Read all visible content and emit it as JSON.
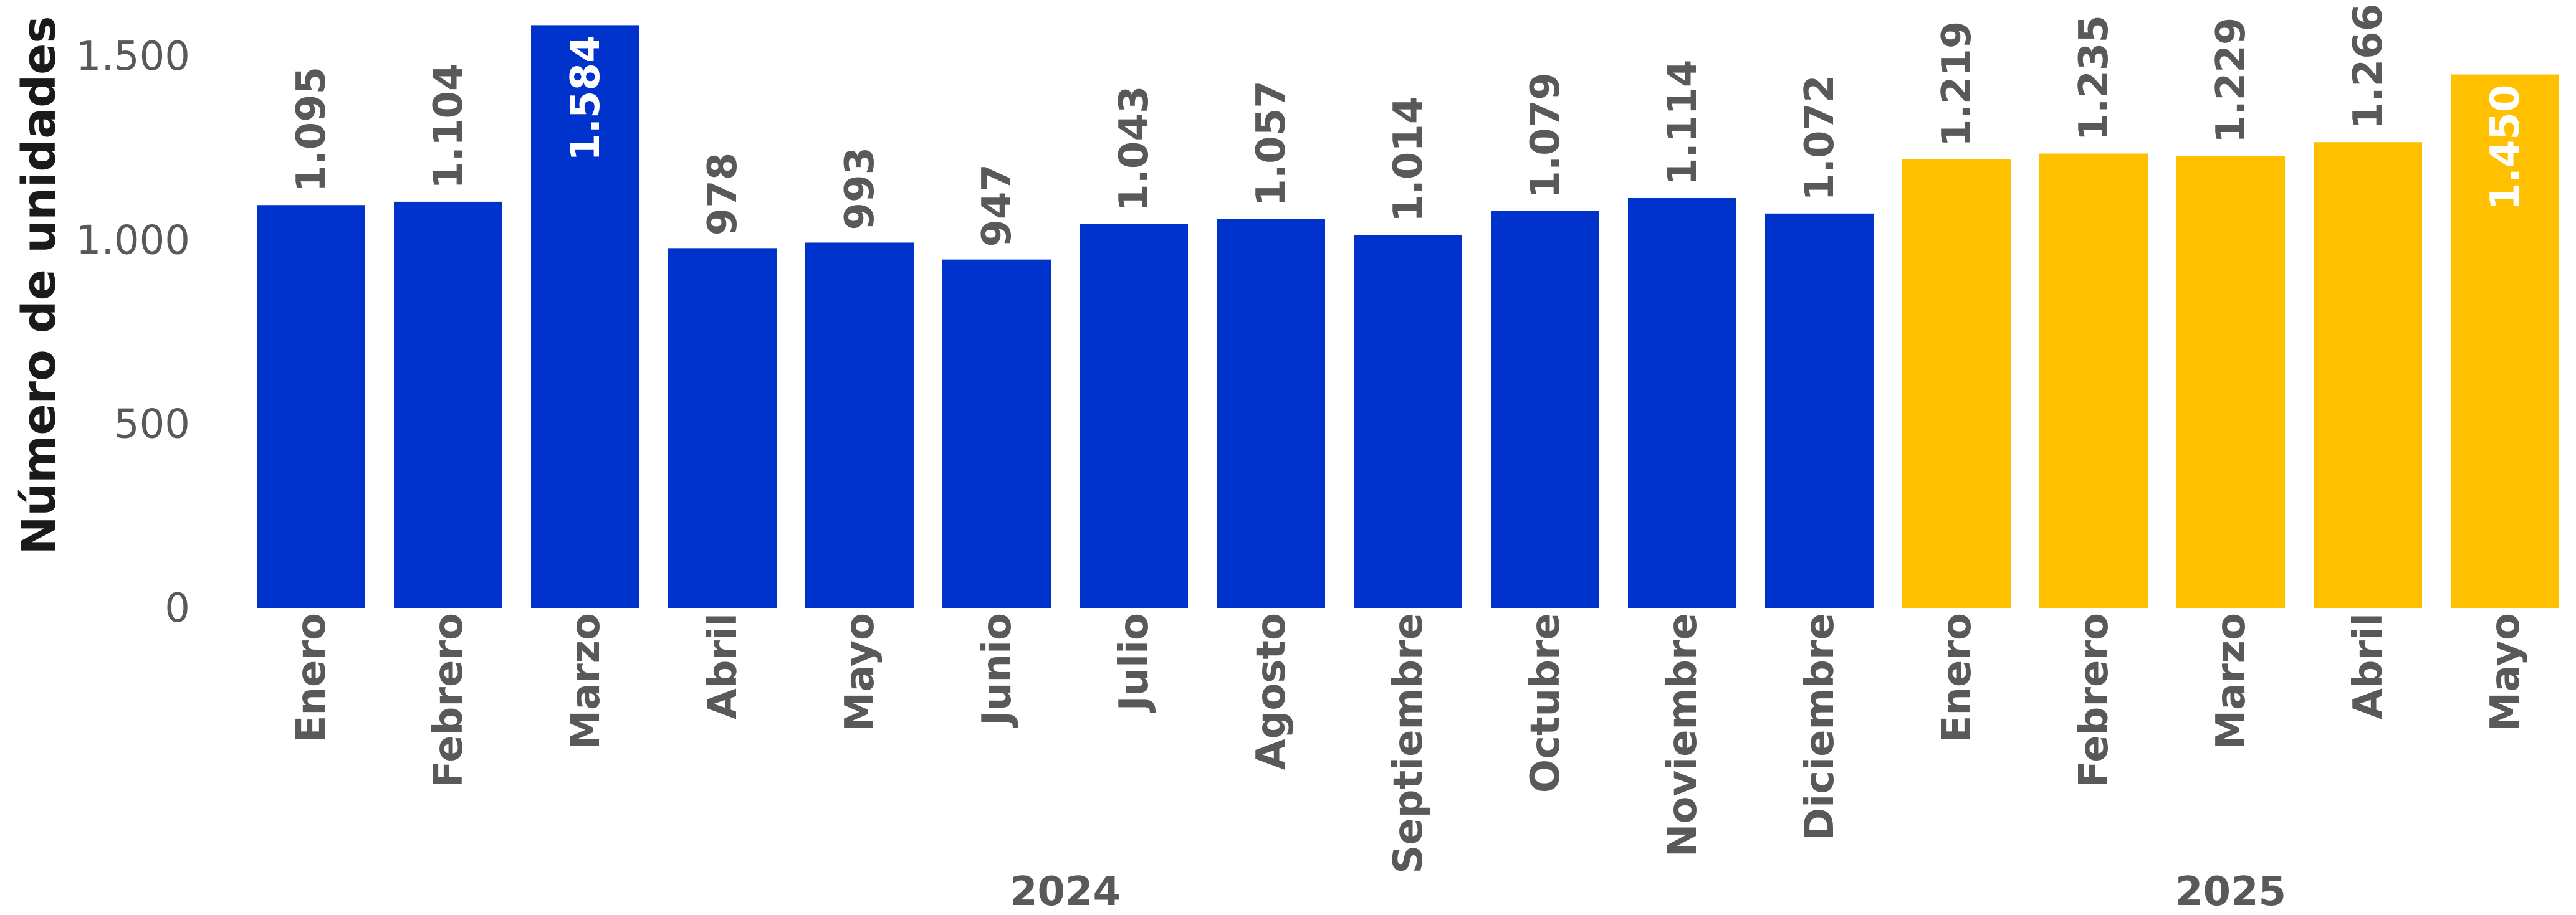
{
  "chart_data": {
    "type": "bar",
    "ylabel": "Número de unidades",
    "xlabel": "",
    "ylim": [
      0,
      1600
    ],
    "yticks": [
      0,
      500,
      1000,
      1500
    ],
    "ytick_labels": [
      "0",
      "500",
      "1.000",
      "1.500"
    ],
    "grid": false,
    "legend": "none",
    "groups": [
      {
        "year": "2024",
        "color": "#0033CC",
        "categories": [
          "Enero",
          "Febrero",
          "Marzo",
          "Abril",
          "Mayo",
          "Junio",
          "Julio",
          "Agosto",
          "Septiembre",
          "Octubre",
          "Noviembre",
          "Diciembre"
        ],
        "values": [
          1095,
          1104,
          1584,
          978,
          993,
          947,
          1043,
          1057,
          1014,
          1079,
          1114,
          1072
        ],
        "labels": [
          "1.095",
          "1.104",
          "1.584",
          "978",
          "993",
          "947",
          "1.043",
          "1.057",
          "1.014",
          "1.079",
          "1.114",
          "1.072"
        ]
      },
      {
        "year": "2025",
        "color": "#FFC000",
        "categories": [
          "Enero",
          "Febrero",
          "Marzo",
          "Abril",
          "Mayo"
        ],
        "values": [
          1219,
          1235,
          1229,
          1266,
          1450
        ],
        "labels": [
          "1.219",
          "1.235",
          "1.229",
          "1.266",
          "1.450"
        ]
      }
    ],
    "label_inside": [
      "Marzo-2024",
      "Mayo-2025"
    ]
  }
}
